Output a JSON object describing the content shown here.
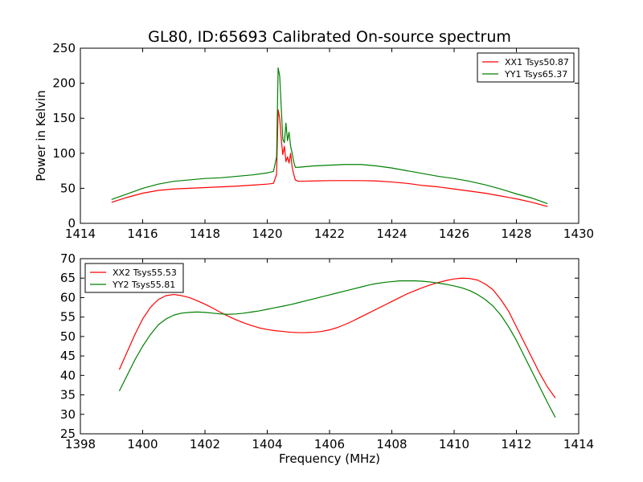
{
  "chart_data": [
    {
      "type": "line",
      "title": "GL80, ID:65693 Calibrated On-source spectrum",
      "xlabel": "",
      "ylabel": "Power in Kelvin",
      "xlim": [
        1414,
        1430
      ],
      "ylim": [
        0,
        250
      ],
      "xticks": [
        "1414",
        "1416",
        "1418",
        "1420",
        "1422",
        "1424",
        "1426",
        "1428",
        "1430"
      ],
      "yticks": [
        "0",
        "50",
        "100",
        "150",
        "200",
        "250"
      ],
      "grid": false,
      "legend_position": "top-right",
      "series": [
        {
          "name": "XX1 Tsys50.87",
          "color": "#ff0000",
          "x": [
            1415.0,
            1415.5,
            1416.0,
            1416.5,
            1417.0,
            1417.5,
            1418.0,
            1418.5,
            1419.0,
            1419.5,
            1420.0,
            1420.2,
            1420.3,
            1420.35,
            1420.4,
            1420.45,
            1420.5,
            1420.55,
            1420.6,
            1420.65,
            1420.7,
            1420.75,
            1420.8,
            1420.85,
            1420.9,
            1421.0,
            1421.5,
            1422.0,
            1422.5,
            1423.0,
            1423.5,
            1424.0,
            1424.5,
            1425.0,
            1425.5,
            1426.0,
            1426.5,
            1427.0,
            1427.5,
            1428.0,
            1428.5,
            1429.0
          ],
          "y": [
            30,
            37,
            43,
            47,
            49,
            50,
            51,
            52,
            53,
            54.5,
            56,
            57,
            70,
            162,
            150,
            120,
            98,
            110,
            88,
            95,
            86,
            100,
            80,
            70,
            62,
            60,
            60.5,
            61,
            61,
            61,
            60.5,
            59,
            57,
            54,
            52,
            49,
            46,
            43,
            39,
            35,
            30,
            24
          ]
        },
        {
          "name": "YY1 Tsys65.37",
          "color": "#008000",
          "x": [
            1415.0,
            1415.5,
            1416.0,
            1416.5,
            1417.0,
            1417.5,
            1418.0,
            1418.5,
            1419.0,
            1419.5,
            1420.0,
            1420.2,
            1420.3,
            1420.35,
            1420.4,
            1420.45,
            1420.5,
            1420.55,
            1420.6,
            1420.65,
            1420.7,
            1420.75,
            1420.8,
            1420.85,
            1420.9,
            1421.0,
            1421.5,
            1422.0,
            1422.5,
            1423.0,
            1423.5,
            1424.0,
            1424.5,
            1425.0,
            1425.5,
            1426.0,
            1426.5,
            1427.0,
            1427.5,
            1428.0,
            1428.5,
            1429.0
          ],
          "y": [
            34,
            42,
            50,
            56,
            60,
            62,
            64,
            65,
            67,
            69,
            72,
            74,
            95,
            222,
            210,
            165,
            120,
            115,
            143,
            118,
            130,
            110,
            100,
            88,
            80,
            80,
            82,
            83,
            84,
            84,
            82,
            79,
            75,
            71,
            67,
            64,
            60,
            55,
            49,
            42,
            36,
            28
          ]
        }
      ]
    },
    {
      "type": "line",
      "title": "",
      "xlabel": "Frequency (MHz)",
      "ylabel": "",
      "xlim": [
        1398,
        1414
      ],
      "ylim": [
        25,
        70
      ],
      "xticks": [
        "1398",
        "1400",
        "1402",
        "1404",
        "1406",
        "1408",
        "1410",
        "1412",
        "1414"
      ],
      "yticks": [
        "25",
        "30",
        "35",
        "40",
        "45",
        "50",
        "55",
        "60",
        "65",
        "70"
      ],
      "grid": false,
      "legend_position": "top-left",
      "series": [
        {
          "name": "XX2 Tsys55.53",
          "color": "#ff0000",
          "x": [
            1399.25,
            1399.5,
            1399.75,
            1400.0,
            1400.25,
            1400.5,
            1400.75,
            1401.0,
            1401.25,
            1401.5,
            1401.75,
            1402.0,
            1402.25,
            1402.5,
            1402.75,
            1403.0,
            1403.25,
            1403.5,
            1403.75,
            1404.0,
            1404.25,
            1404.5,
            1404.75,
            1405.0,
            1405.25,
            1405.5,
            1405.75,
            1406.0,
            1406.25,
            1406.5,
            1406.75,
            1407.0,
            1407.25,
            1407.5,
            1407.75,
            1408.0,
            1408.25,
            1408.5,
            1408.75,
            1409.0,
            1409.25,
            1409.5,
            1409.75,
            1410.0,
            1410.25,
            1410.5,
            1410.75,
            1411.0,
            1411.25,
            1411.5,
            1411.75,
            1412.0,
            1412.25,
            1412.5,
            1412.75,
            1413.0,
            1413.25
          ],
          "y": [
            41.5,
            46,
            50.5,
            54.5,
            57.5,
            59.5,
            60.5,
            60.8,
            60.5,
            60,
            59.2,
            58.3,
            57.3,
            56.2,
            55.2,
            54.3,
            53.5,
            52.8,
            52.2,
            51.8,
            51.5,
            51.3,
            51.1,
            51.0,
            51.0,
            51.1,
            51.3,
            51.7,
            52.3,
            53.1,
            54.0,
            55.0,
            56.0,
            57.0,
            58.0,
            59.0,
            60.0,
            61.0,
            61.8,
            62.6,
            63.3,
            63.9,
            64.4,
            64.8,
            65.0,
            64.9,
            64.5,
            63.5,
            62.0,
            59.5,
            56.5,
            52.5,
            48.5,
            44.5,
            40.5,
            37.0,
            34.2
          ]
        },
        {
          "name": "YY2 Tsys55.81",
          "color": "#008000",
          "x": [
            1399.25,
            1399.5,
            1399.75,
            1400.0,
            1400.25,
            1400.5,
            1400.75,
            1401.0,
            1401.25,
            1401.5,
            1401.75,
            1402.0,
            1402.25,
            1402.5,
            1402.75,
            1403.0,
            1403.25,
            1403.5,
            1403.75,
            1404.0,
            1404.25,
            1404.5,
            1404.75,
            1405.0,
            1405.25,
            1405.5,
            1405.75,
            1406.0,
            1406.25,
            1406.5,
            1406.75,
            1407.0,
            1407.25,
            1407.5,
            1407.75,
            1408.0,
            1408.25,
            1408.5,
            1408.75,
            1409.0,
            1409.25,
            1409.5,
            1409.75,
            1410.0,
            1410.25,
            1410.5,
            1410.75,
            1411.0,
            1411.25,
            1411.5,
            1411.75,
            1412.0,
            1412.25,
            1412.5,
            1412.75,
            1413.0,
            1413.25
          ],
          "y": [
            36,
            40,
            44,
            47.5,
            50.5,
            53,
            54.5,
            55.5,
            56,
            56.2,
            56.3,
            56.2,
            56,
            55.8,
            55.7,
            55.8,
            56.0,
            56.3,
            56.6,
            57.0,
            57.4,
            57.8,
            58.2,
            58.7,
            59.2,
            59.7,
            60.2,
            60.7,
            61.2,
            61.7,
            62.2,
            62.7,
            63.2,
            63.6,
            63.9,
            64.1,
            64.3,
            64.3,
            64.3,
            64.2,
            64.0,
            63.7,
            63.4,
            63.0,
            62.5,
            61.8,
            60.8,
            59.5,
            57.8,
            55.5,
            52.5,
            49,
            45,
            41,
            37,
            33,
            29.2
          ]
        }
      ]
    }
  ]
}
